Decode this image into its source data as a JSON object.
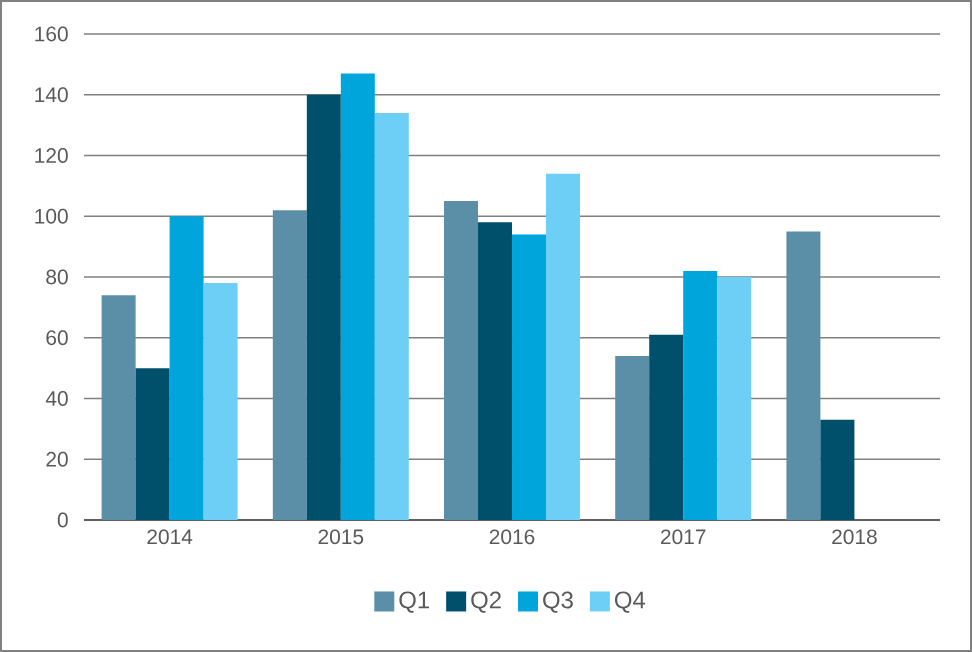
{
  "chart_data": {
    "type": "bar",
    "categories": [
      "2014",
      "2015",
      "2016",
      "2017",
      "2018"
    ],
    "series": [
      {
        "name": "Q1",
        "color": "#5b8fa8",
        "values": [
          74,
          102,
          105,
          54,
          95
        ]
      },
      {
        "name": "Q2",
        "color": "#00506b",
        "values": [
          50,
          140,
          98,
          61,
          33
        ]
      },
      {
        "name": "Q3",
        "color": "#00a5dc",
        "values": [
          100,
          147,
          94,
          82,
          null
        ]
      },
      {
        "name": "Q4",
        "color": "#6dcff6",
        "values": [
          78,
          134,
          114,
          80,
          null
        ]
      }
    ],
    "ylim": [
      0,
      160
    ],
    "yticks": [
      0,
      20,
      40,
      60,
      80,
      100,
      120,
      140,
      160
    ],
    "grid": "y",
    "legend": "bottom"
  }
}
